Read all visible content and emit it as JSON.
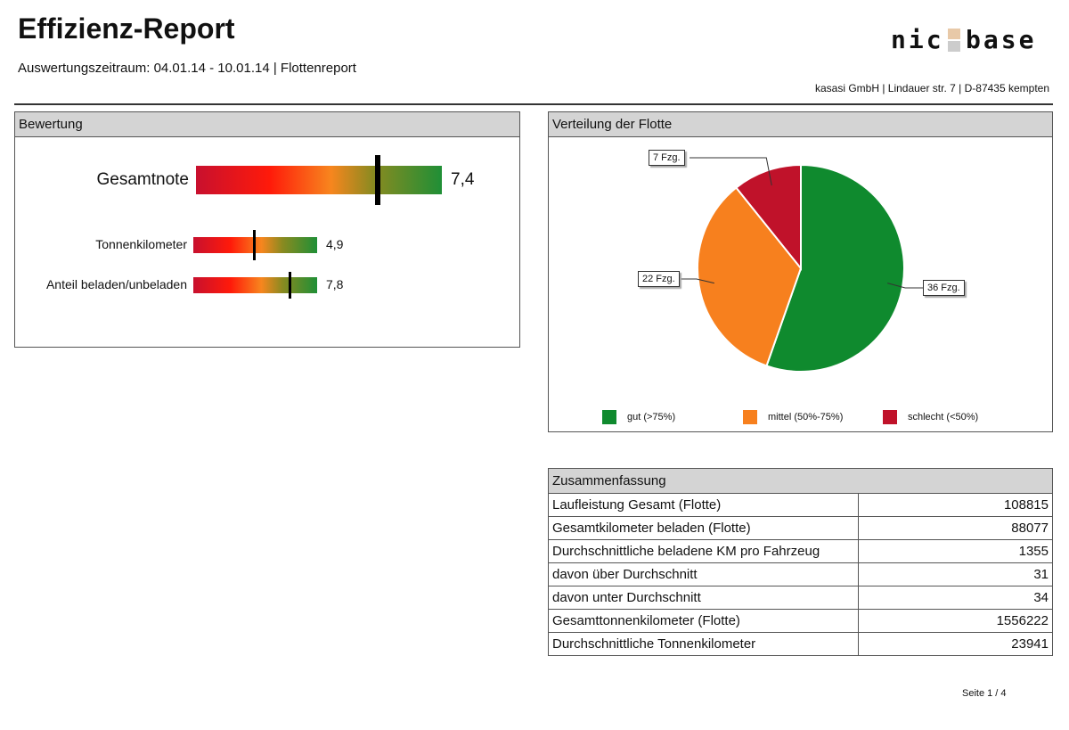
{
  "header": {
    "title": "Effizienz-Report",
    "period": "Auswertungszeitraum: 04.01.14 - 10.01.14 | Flottenreport",
    "logo": "nic base",
    "address": "kasasi GmbH | Lindauer str. 7 | D-87435 kempten"
  },
  "bewertung": {
    "title": "Bewertung",
    "scale": [
      0,
      10
    ],
    "gauges": [
      {
        "label": "Gesamtnote",
        "value": 7.4,
        "display": "7,4"
      },
      {
        "label": "Tonnenkilometer",
        "value": 4.9,
        "display": "4,9"
      },
      {
        "label": "Anteil beladen/unbeladen",
        "value": 7.8,
        "display": "7,8"
      }
    ]
  },
  "verteilung": {
    "title": "Verteilung der Flotte"
  },
  "chart_data": {
    "type": "pie",
    "categories": [
      "gut (>75%)",
      "mittel (50%-75%)",
      "schlecht (<50%)"
    ],
    "values": [
      36,
      22,
      7
    ],
    "data_labels": [
      "36 Fzg.",
      "22 Fzg.",
      "7 Fzg."
    ],
    "colors": [
      "#0f8a2e",
      "#f7801e",
      "#c0122a"
    ],
    "legend": "bottom"
  },
  "summary": {
    "title": "Zusammenfassung",
    "rows": [
      {
        "label": "Laufleistung Gesamt (Flotte)",
        "value": "108815"
      },
      {
        "label": "Gesamtkilometer beladen (Flotte)",
        "value": "88077"
      },
      {
        "label": "Durchschnittliche beladene KM pro Fahrzeug",
        "value": "1355"
      },
      {
        "label": "davon über Durchschnitt",
        "value": "31"
      },
      {
        "label": "davon unter Durchschnitt",
        "value": "34"
      },
      {
        "label": "Gesamttonnenkilometer (Flotte)",
        "value": "1556222"
      },
      {
        "label": "Durchschnittliche Tonnenkilometer",
        "value": "23941"
      }
    ]
  },
  "footer": {
    "page": "Seite 1 / 4"
  }
}
